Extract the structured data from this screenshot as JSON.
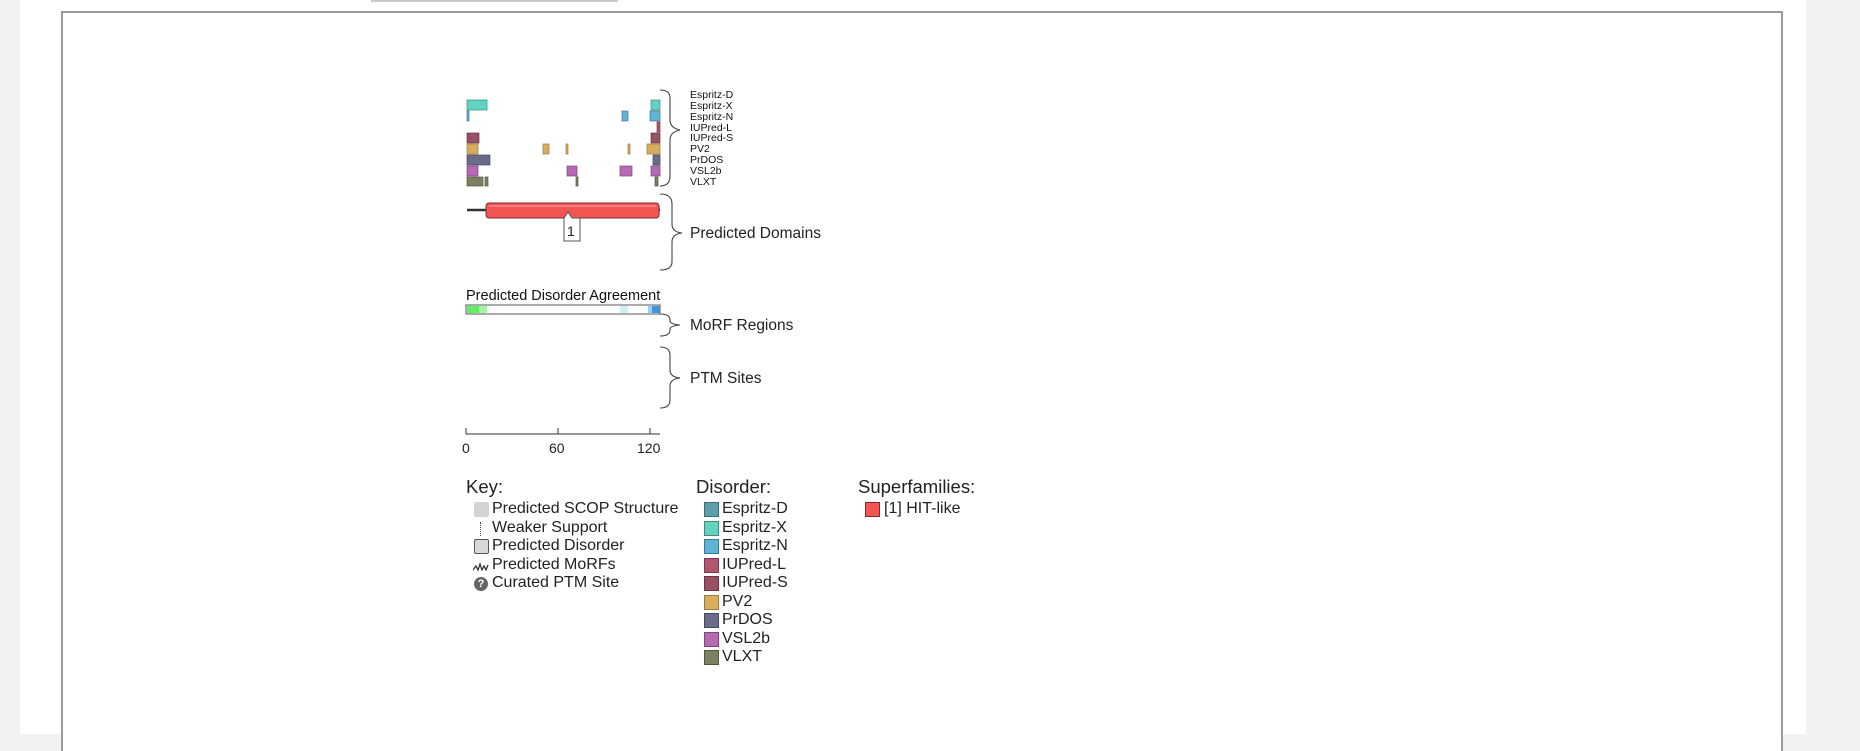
{
  "tracks": {
    "predictors": [
      "Espritz-D",
      "Espritz-X",
      "Espritz-N",
      "IUPred-L",
      "IUPred-S",
      "PV2",
      "PrDOS",
      "VSL2b",
      "VLXT"
    ],
    "domains_label": "Predicted Domains",
    "domain_number": "1",
    "agreement_label": "Predicted Disorder Agreement",
    "morf_label": "MoRF Regions",
    "ptm_label": "PTM Sites"
  },
  "axis": {
    "ticks": [
      "0",
      "60",
      "120"
    ]
  },
  "key": {
    "title": "Key:",
    "items": [
      {
        "icon": "scop-structure-swatch",
        "label": "Predicted SCOP Structure"
      },
      {
        "icon": "weaker-support-dotted-line",
        "label": "Weaker Support"
      },
      {
        "icon": "disorder-swatch",
        "label": "Predicted Disorder"
      },
      {
        "icon": "morf-wave-icon",
        "label": "Predicted MoRFs"
      },
      {
        "icon": "question-circle-icon",
        "label": "Curated PTM Site"
      }
    ]
  },
  "disorder_legend": {
    "title": "Disorder:",
    "items": [
      {
        "label": "Espritz-D",
        "color": "#5e9eaa"
      },
      {
        "label": "Espritz-X",
        "color": "#61d3c0"
      },
      {
        "label": "Espritz-N",
        "color": "#5fb4d3"
      },
      {
        "label": "IUPred-L",
        "color": "#b0566d"
      },
      {
        "label": "IUPred-S",
        "color": "#9a5063"
      },
      {
        "label": "PV2",
        "color": "#d9ad5e"
      },
      {
        "label": "PrDOS",
        "color": "#6b6c89"
      },
      {
        "label": "VSL2b",
        "color": "#b76ab3"
      },
      {
        "label": "VLXT",
        "color": "#7d8062"
      }
    ]
  },
  "superfamilies": {
    "title": "Superfamilies:",
    "items": [
      {
        "label": "[1] HIT-like",
        "color": "#f25553"
      }
    ]
  },
  "colors": {
    "domain": "#f25553",
    "agreement_green": "#5fef5f",
    "agreement_blue": "#5fb4ef"
  }
}
